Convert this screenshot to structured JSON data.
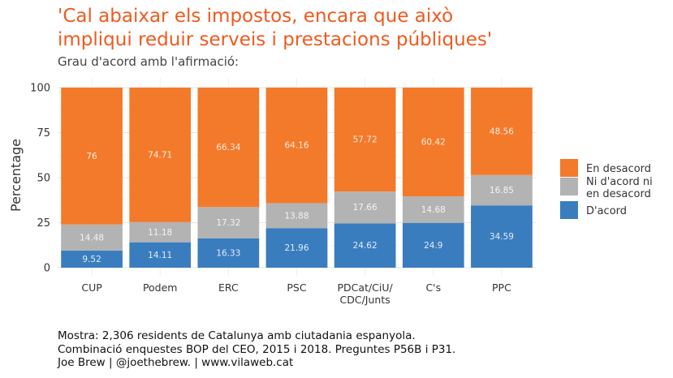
{
  "title_line1": "'Cal abaixar els impostos, encara que això",
  "title_line2": "impliqui reduir serveis i prestacions públiques'",
  "subtitle": "Grau d'acord amb l'afirmació:",
  "caption_lines": [
    "Mostra: 2,306 residents de Catalunya amb ciutadania espanyola.",
    "Combinació enquestes BOP del CEO, 2015 i 2018. Preguntes P56B i P31.",
    "Joe Brew | @joethebrew. | www.vilaweb.cat"
  ],
  "chart_data": {
    "type": "bar",
    "stacked": true,
    "categories": [
      "CUP",
      "Podem",
      "ERC",
      "PSC",
      "PDCat/CiU/\nCDC/Junts",
      "C's",
      "PPC"
    ],
    "series": [
      {
        "name": "D'acord",
        "color": "#3a7dbf",
        "values": [
          9.52,
          14.11,
          16.33,
          21.96,
          24.62,
          24.9,
          34.59
        ]
      },
      {
        "name": "Ni d'acord ni\nen desacord",
        "color": "#b3b3b3",
        "values": [
          14.48,
          11.18,
          17.32,
          13.88,
          17.66,
          14.68,
          16.85
        ]
      },
      {
        "name": "En desacord",
        "color": "#f37a2a",
        "values": [
          76,
          74.71,
          66.34,
          64.16,
          57.72,
          60.42,
          48.56
        ]
      }
    ],
    "legend_order": [
      "En desacord",
      "Ni d'acord ni\nen desacord",
      "D'acord"
    ],
    "ylabel": "Percentage",
    "xlabel": "",
    "ylim": [
      0,
      100
    ],
    "yticks": [
      0,
      25,
      50,
      75,
      100
    ],
    "grid": true,
    "legend_position": "right"
  }
}
